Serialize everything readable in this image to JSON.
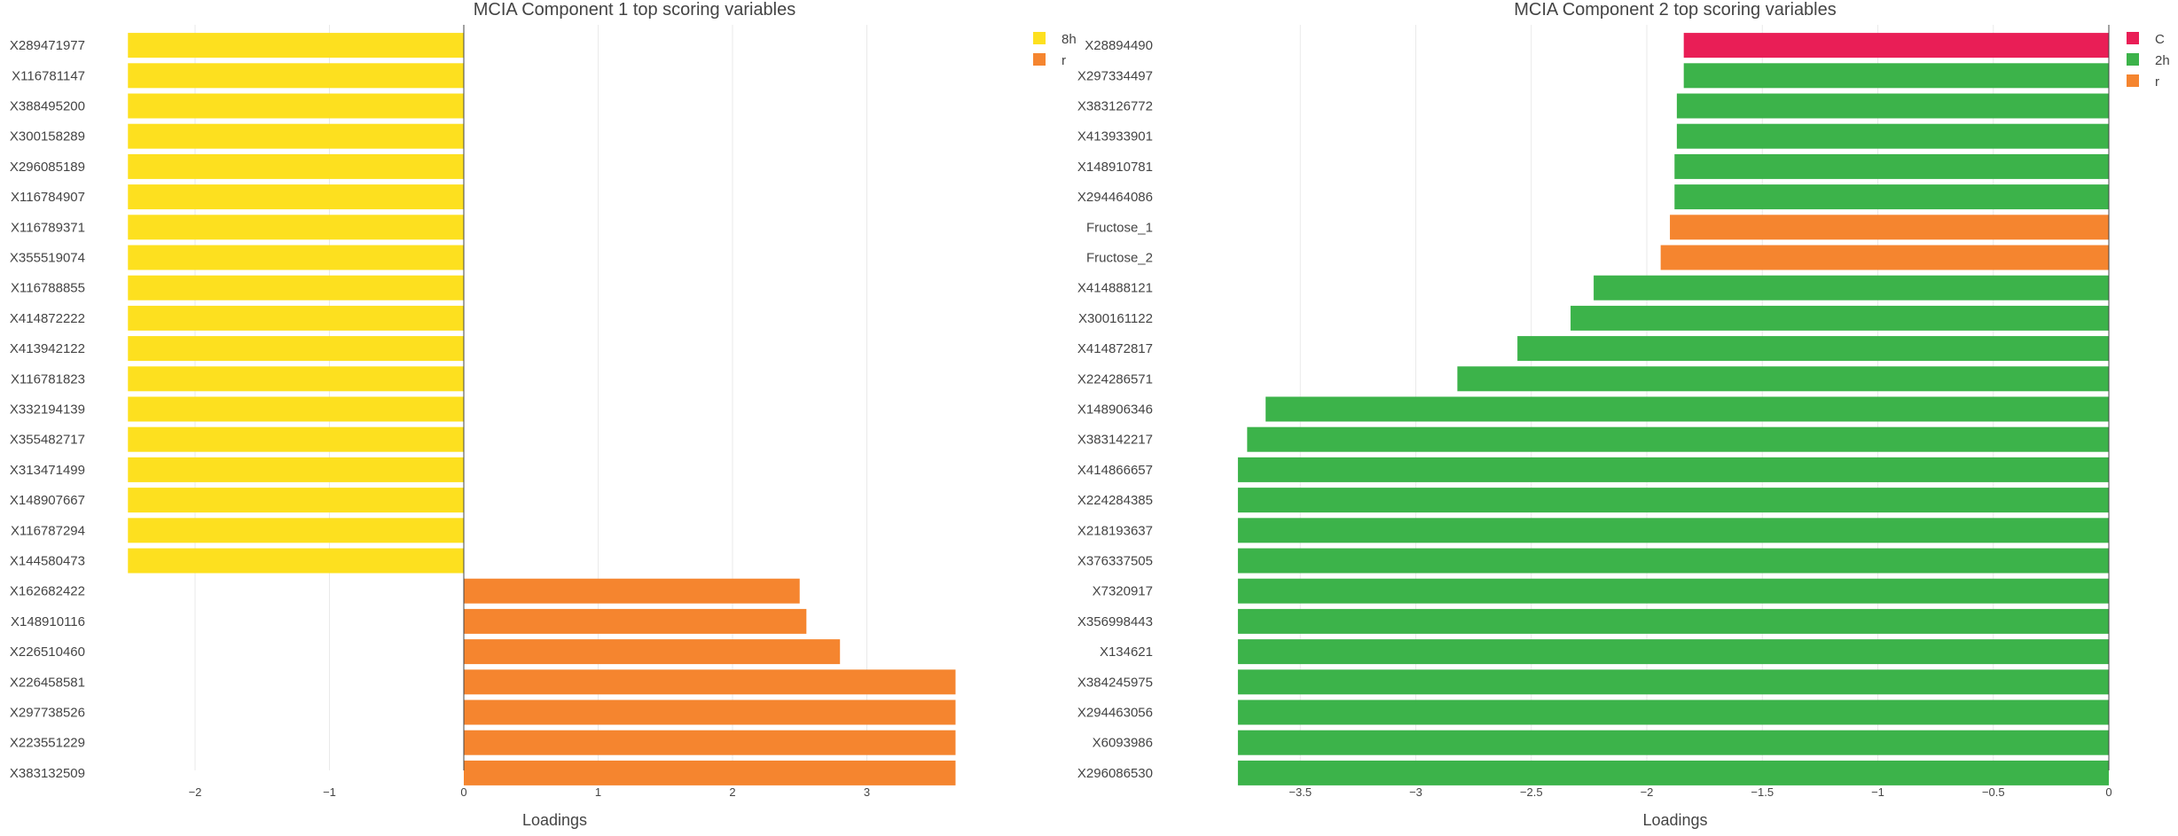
{
  "chart_data": [
    {
      "type": "bar",
      "orientation": "horizontal",
      "title": "MCIA Component 1 top scoring variables",
      "xlabel": "Loadings",
      "ylabel": "",
      "xlim": [
        -2.2,
        3.9
      ],
      "xticks": [
        -2,
        -1,
        0,
        1,
        2,
        3
      ],
      "xtick_labels": [
        "−2",
        "−1",
        "0",
        "1",
        "2",
        "3"
      ],
      "grid": true,
      "legend_position": "top-right",
      "legend": [
        {
          "name": "8h",
          "color": "#FDE01F"
        },
        {
          "name": "r",
          "color": "#F5852F"
        }
      ],
      "bars": [
        {
          "label": "X289471977",
          "value": -2.5,
          "group": "8h"
        },
        {
          "label": "X116781147",
          "value": -2.5,
          "group": "8h"
        },
        {
          "label": "X388495200",
          "value": -2.5,
          "group": "8h"
        },
        {
          "label": "X300158289",
          "value": -2.5,
          "group": "8h"
        },
        {
          "label": "X296085189",
          "value": -2.5,
          "group": "8h"
        },
        {
          "label": "X116784907",
          "value": -2.5,
          "group": "8h"
        },
        {
          "label": "X116789371",
          "value": -2.5,
          "group": "8h"
        },
        {
          "label": "X355519074",
          "value": -2.5,
          "group": "8h"
        },
        {
          "label": "X116788855",
          "value": -2.5,
          "group": "8h"
        },
        {
          "label": "X414872222",
          "value": -2.5,
          "group": "8h"
        },
        {
          "label": "X413942122",
          "value": -2.5,
          "group": "8h"
        },
        {
          "label": "X116781823",
          "value": -2.5,
          "group": "8h"
        },
        {
          "label": "X332194139",
          "value": -2.5,
          "group": "8h"
        },
        {
          "label": "X355482717",
          "value": -2.5,
          "group": "8h"
        },
        {
          "label": "X313471499",
          "value": -2.5,
          "group": "8h"
        },
        {
          "label": "X148907667",
          "value": -2.5,
          "group": "8h"
        },
        {
          "label": "X116787294",
          "value": -2.5,
          "group": "8h"
        },
        {
          "label": "X144580473",
          "value": -2.5,
          "group": "8h"
        },
        {
          "label": "X162682422",
          "value": 2.5,
          "group": "r"
        },
        {
          "label": "X148910116",
          "value": 2.55,
          "group": "r"
        },
        {
          "label": "X226510460",
          "value": 2.8,
          "group": "r"
        },
        {
          "label": "X226458581",
          "value": 3.66,
          "group": "r"
        },
        {
          "label": "X297738526",
          "value": 3.66,
          "group": "r"
        },
        {
          "label": "X223551229",
          "value": 3.66,
          "group": "r"
        },
        {
          "label": "X383132509",
          "value": 3.66,
          "group": "r"
        }
      ]
    },
    {
      "type": "bar",
      "orientation": "horizontal",
      "title": "MCIA Component 2 top scoring variables",
      "xlabel": "Loadings",
      "ylabel": "",
      "xlim": [
        -3.8,
        0
      ],
      "xticks": [
        -3.5,
        -3,
        -2.5,
        -2,
        -1.5,
        -1,
        -0.5,
        0
      ],
      "xtick_labels": [
        "−3.5",
        "−3",
        "−2.5",
        "−2",
        "−1.5",
        "−1",
        "−0.5",
        "0"
      ],
      "grid": true,
      "legend_position": "top-right",
      "legend": [
        {
          "name": "C",
          "color": "#E91E56"
        },
        {
          "name": "2h",
          "color": "#3CB34A"
        },
        {
          "name": "r",
          "color": "#F5852F"
        }
      ],
      "bars": [
        {
          "label": "X28894490",
          "value": -1.84,
          "group": "C"
        },
        {
          "label": "X297334497",
          "value": -1.84,
          "group": "2h"
        },
        {
          "label": "X383126772",
          "value": -1.87,
          "group": "2h"
        },
        {
          "label": "X413933901",
          "value": -1.87,
          "group": "2h"
        },
        {
          "label": "X148910781",
          "value": -1.88,
          "group": "2h"
        },
        {
          "label": "X294464086",
          "value": -1.88,
          "group": "2h"
        },
        {
          "label": "Fructose_1",
          "value": -1.9,
          "group": "r"
        },
        {
          "label": "Fructose_2",
          "value": -1.94,
          "group": "r"
        },
        {
          "label": "X414888121",
          "value": -2.23,
          "group": "2h"
        },
        {
          "label": "X300161122",
          "value": -2.33,
          "group": "2h"
        },
        {
          "label": "X414872817",
          "value": -2.56,
          "group": "2h"
        },
        {
          "label": "X224286571",
          "value": -2.82,
          "group": "2h"
        },
        {
          "label": "X148906346",
          "value": -3.65,
          "group": "2h"
        },
        {
          "label": "X383142217",
          "value": -3.73,
          "group": "2h"
        },
        {
          "label": "X414866657",
          "value": -3.77,
          "group": "2h"
        },
        {
          "label": "X224284385",
          "value": -3.77,
          "group": "2h"
        },
        {
          "label": "X218193637",
          "value": -3.77,
          "group": "2h"
        },
        {
          "label": "X376337505",
          "value": -3.77,
          "group": "2h"
        },
        {
          "label": "X7320917",
          "value": -3.77,
          "group": "2h"
        },
        {
          "label": "X356998443",
          "value": -3.77,
          "group": "2h"
        },
        {
          "label": "X134621",
          "value": -3.77,
          "group": "2h"
        },
        {
          "label": "X384245975",
          "value": -3.77,
          "group": "2h"
        },
        {
          "label": "X294463056",
          "value": -3.77,
          "group": "2h"
        },
        {
          "label": "X6093986",
          "value": -3.77,
          "group": "2h"
        },
        {
          "label": "X296086530",
          "value": -3.77,
          "group": "2h"
        }
      ]
    }
  ]
}
